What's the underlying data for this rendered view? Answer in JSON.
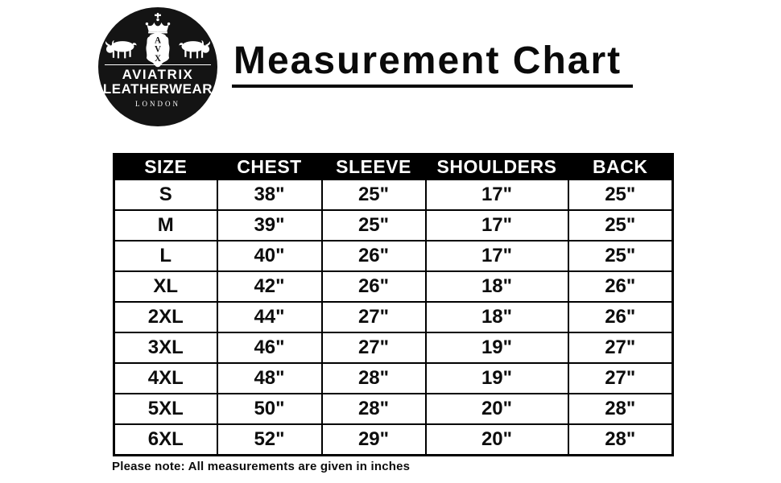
{
  "logo": {
    "monogram": [
      "A",
      "V",
      "X"
    ],
    "brand_line1": "AVIATRIX",
    "brand_line2": "LEATHERWEAR",
    "city": "LONDON"
  },
  "title": "Measurement Chart",
  "table": {
    "headers": [
      "SIZE",
      "CHEST",
      "SLEEVE",
      "SHOULDERS",
      "BACK"
    ],
    "rows": [
      [
        "S",
        "38\"",
        "25\"",
        "17\"",
        "25\""
      ],
      [
        "M",
        "39\"",
        "25\"",
        "17\"",
        "25\""
      ],
      [
        "L",
        "40\"",
        "26\"",
        "17\"",
        "25\""
      ],
      [
        "XL",
        "42\"",
        "26\"",
        "18\"",
        "26\""
      ],
      [
        "2XL",
        "44\"",
        "27\"",
        "18\"",
        "26\""
      ],
      [
        "3XL",
        "46\"",
        "27\"",
        "19\"",
        "27\""
      ],
      [
        "4XL",
        "48\"",
        "28\"",
        "19\"",
        "27\""
      ],
      [
        "5XL",
        "50\"",
        "28\"",
        "20\"",
        "28\""
      ],
      [
        "6XL",
        "52\"",
        "29\"",
        "20\"",
        "28\""
      ]
    ]
  },
  "note": "Please note: All measurements are given in inches",
  "colors": {
    "page_bg": "#ffffff",
    "header_bg": "#000000",
    "header_text": "#ffffff",
    "body_text": "#0d0d0d",
    "logo_bg": "#141414"
  },
  "chart_data": {
    "type": "table",
    "title": "Measurement Chart",
    "units": "inches",
    "columns": [
      "SIZE",
      "CHEST",
      "SLEEVE",
      "SHOULDERS",
      "BACK"
    ],
    "rows": [
      [
        "S",
        38,
        25,
        17,
        25
      ],
      [
        "M",
        39,
        25,
        17,
        25
      ],
      [
        "L",
        40,
        26,
        17,
        25
      ],
      [
        "XL",
        42,
        26,
        18,
        26
      ],
      [
        "2XL",
        44,
        27,
        18,
        26
      ],
      [
        "3XL",
        46,
        27,
        19,
        27
      ],
      [
        "4XL",
        48,
        28,
        19,
        27
      ],
      [
        "5XL",
        50,
        28,
        20,
        28
      ],
      [
        "6XL",
        52,
        29,
        20,
        28
      ]
    ],
    "note": "Please note: All measurements are given in inches"
  }
}
